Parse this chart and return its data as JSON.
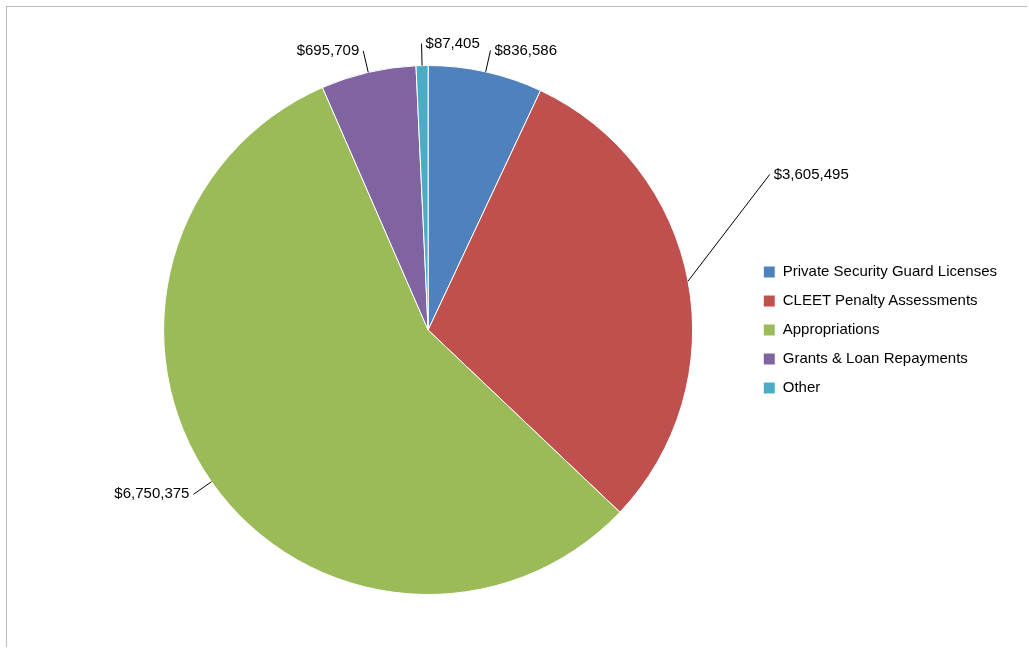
{
  "chart_data": {
    "type": "pie",
    "categories": [
      "Private Security Guard Licenses",
      "CLEET Penalty Assessments",
      "Appropriations",
      "Grants & Loan Repayments",
      "Other"
    ],
    "values": [
      836586,
      3605495,
      6750375,
      695709,
      87405
    ],
    "colors": [
      "#4f81bd",
      "#c0504d",
      "#9bbb59",
      "#8064a2",
      "#4bacc6"
    ],
    "value_labels": [
      "$836,586",
      "$3,605,495",
      "$6,750,375",
      "$695,709",
      "$87,405"
    ],
    "legend": "right"
  }
}
